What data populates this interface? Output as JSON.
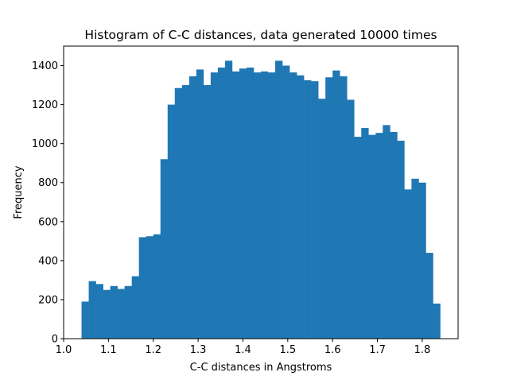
{
  "chart_data": {
    "type": "bar",
    "title": "Histogram of C-C distances, data generated 10000 times",
    "xlabel": "C-C distances in Angstroms",
    "ylabel": "Frequency",
    "xlim": [
      1.0,
      1.88
    ],
    "ylim": [
      0,
      1500
    ],
    "xticks": [
      1.0,
      1.1,
      1.2,
      1.3,
      1.4,
      1.5,
      1.6,
      1.7,
      1.8
    ],
    "xtick_labels": [
      "1.0",
      "1.1",
      "1.2",
      "1.3",
      "1.4",
      "1.5",
      "1.6",
      "1.7",
      "1.8"
    ],
    "yticks": [
      0,
      200,
      400,
      600,
      800,
      1000,
      1200,
      1400
    ],
    "ytick_labels": [
      "0",
      "200",
      "400",
      "600",
      "800",
      "1000",
      "1200",
      "1400"
    ],
    "bin_start": 1.04,
    "bin_width": 0.016,
    "values": [
      190,
      295,
      280,
      250,
      270,
      255,
      270,
      320,
      520,
      525,
      535,
      920,
      1200,
      1285,
      1300,
      1345,
      1380,
      1300,
      1365,
      1390,
      1425,
      1370,
      1385,
      1390,
      1365,
      1370,
      1365,
      1425,
      1400,
      1365,
      1350,
      1325,
      1320,
      1230,
      1340,
      1375,
      1345,
      1225,
      1035,
      1080,
      1045,
      1055,
      1095,
      1060,
      1015,
      765,
      820,
      800,
      440,
      180
    ],
    "bar_color": "#1f77b4",
    "grid": false
  }
}
